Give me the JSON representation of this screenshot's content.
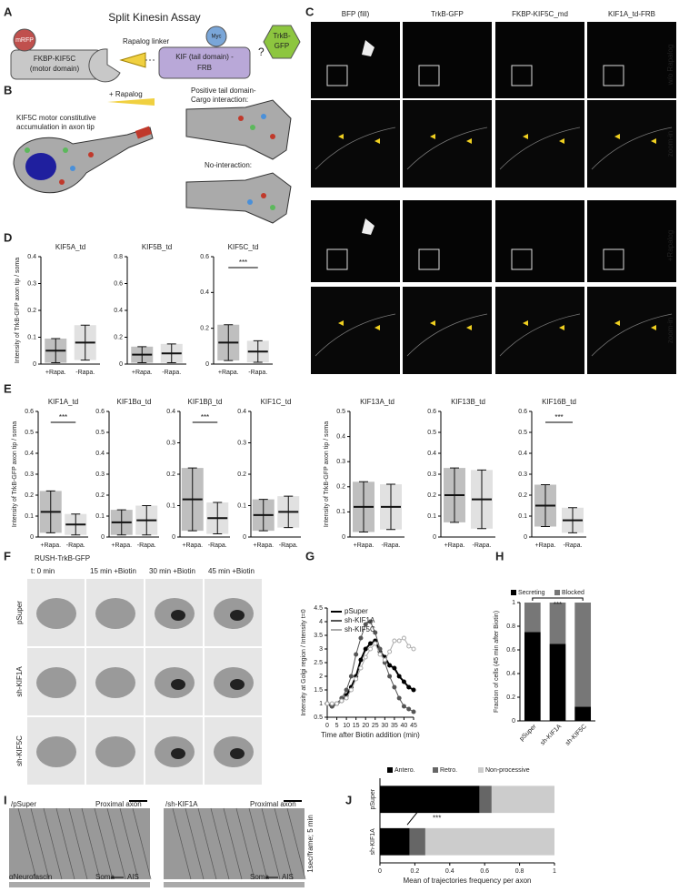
{
  "figure": {
    "letters": [
      "A",
      "B",
      "C",
      "D",
      "E",
      "F",
      "G",
      "H",
      "I",
      "J"
    ],
    "a": {
      "title": "Split Kinesin Assay",
      "mrfp": "mRFP",
      "motor": [
        "FKBP-KIF5C",
        "(motor domain)"
      ],
      "linker": "Rapalog linker",
      "kif": [
        "KIF (tail domain) -",
        "FRB"
      ],
      "myc": "Myc",
      "question": "?",
      "trkb": [
        "TrkB-",
        "GFP"
      ]
    },
    "b": {
      "rapalog": "+ Rapalog",
      "positive": [
        "Positive tail domain-",
        "Cargo interaction:"
      ],
      "motor": [
        "KIF5C motor constitutive",
        "accumulation in axon tip"
      ],
      "none": "No-interaction:"
    },
    "c": {
      "columns": [
        "BFP (fill)",
        "TrkB-GFP",
        "FKBP-KIF5C_md",
        "KIF1A_td-FRB"
      ],
      "rows": [
        "w/o Rapalog",
        "+Rapalog"
      ],
      "zoom": [
        "zoom-in",
        "zoom-in"
      ]
    },
    "f": {
      "title": "RUSH-TrkB-GFP",
      "columns": [
        "t: 0 min",
        "15 min +Biotin",
        "30 min +Biotin",
        "45 min +Biotin"
      ],
      "rows": [
        "pSuper",
        "sh-KIF1A",
        "sh-KIF5C"
      ]
    },
    "i": {
      "panels": [
        "/pSuper",
        "/sh-KIF1A"
      ],
      "region": [
        "Proximal axon",
        "Proximal axon"
      ],
      "time": "1sec/frame; 5 min",
      "stain": "αNeurofascin",
      "soma": [
        "Soma",
        "Soma"
      ],
      "ais": [
        "AIS",
        "AIS"
      ]
    }
  },
  "chart_data": [
    {
      "type": "dot",
      "title": "KIF5A_td",
      "ylabel": "Intensity of TrkB-GFP axon tip / soma",
      "categories": [
        "+Rapa.",
        "-Rapa."
      ],
      "values": [
        0.05,
        0.08
      ],
      "errors": [
        0.045,
        0.065
      ],
      "colors": [
        "#000000",
        "#888888"
      ],
      "ylim": [
        0,
        0.4
      ],
      "yticks": [
        0,
        0.1,
        0.2,
        0.3,
        0.4
      ]
    },
    {
      "type": "dot",
      "title": "KIF5B_td",
      "categories": [
        "+Rapa.",
        "-Rapa."
      ],
      "values": [
        0.07,
        0.08
      ],
      "errors": [
        0.06,
        0.07
      ],
      "colors": [
        "#000000",
        "#888888"
      ],
      "ylim": [
        0,
        0.8
      ],
      "yticks": [
        0,
        0.2,
        0.4,
        0.6,
        0.8
      ]
    },
    {
      "type": "dot",
      "title": "KIF5C_td",
      "annotation": "***",
      "categories": [
        "+Rapa.",
        "-Rapa."
      ],
      "values": [
        0.12,
        0.07
      ],
      "errors": [
        0.1,
        0.06
      ],
      "colors": [
        "#000000",
        "#888888"
      ],
      "ylim": [
        0,
        0.6
      ],
      "yticks": [
        0,
        0.2,
        0.4,
        0.6
      ]
    },
    {
      "type": "dot",
      "title": "KIF1A_td",
      "annotation": "***",
      "ylabel": "Intensity of TrkB-GFP axon tip / soma",
      "categories": [
        "+Rapa.",
        "-Rapa."
      ],
      "values": [
        0.12,
        0.06
      ],
      "errors": [
        0.1,
        0.05
      ],
      "colors": [
        "#000000",
        "#888888"
      ],
      "ylim": [
        0,
        0.6
      ],
      "yticks": [
        0,
        0.1,
        0.2,
        0.3,
        0.4,
        0.5,
        0.6
      ]
    },
    {
      "type": "dot",
      "title": "KIF1Bα_td",
      "categories": [
        "+Rapa.",
        "-Rapa."
      ],
      "values": [
        0.07,
        0.08
      ],
      "errors": [
        0.06,
        0.07
      ],
      "colors": [
        "#000000",
        "#888888"
      ],
      "ylim": [
        0,
        0.6
      ],
      "yticks": [
        0,
        0.1,
        0.2,
        0.3,
        0.4,
        0.5,
        0.6
      ]
    },
    {
      "type": "dot",
      "title": "KIF1Bβ_td",
      "annotation": "***",
      "categories": [
        "+Rapa.",
        "-Rapa."
      ],
      "values": [
        0.12,
        0.06
      ],
      "errors": [
        0.1,
        0.05
      ],
      "colors": [
        "#000000",
        "#888888"
      ],
      "ylim": [
        0,
        0.4
      ],
      "yticks": [
        0,
        0.1,
        0.2,
        0.3,
        0.4
      ]
    },
    {
      "type": "dot",
      "title": "KIF1C_td",
      "categories": [
        "+Rapa.",
        "-Rapa."
      ],
      "values": [
        0.07,
        0.08
      ],
      "errors": [
        0.05,
        0.05
      ],
      "colors": [
        "#000000",
        "#888888"
      ],
      "ylim": [
        0,
        0.4
      ],
      "yticks": [
        0,
        0.1,
        0.2,
        0.3,
        0.4
      ]
    },
    {
      "type": "dot",
      "title": "KIF13A_td",
      "ylabel": "Intensity of TrkB-GFP axon tip / soma",
      "categories": [
        "+Rapa.",
        "-Rapa."
      ],
      "values": [
        0.12,
        0.12
      ],
      "errors": [
        0.1,
        0.09
      ],
      "colors": [
        "#000000",
        "#888888"
      ],
      "ylim": [
        0,
        0.5
      ],
      "yticks": [
        0,
        0.1,
        0.2,
        0.3,
        0.4,
        0.5
      ]
    },
    {
      "type": "dot",
      "title": "KIF13B_td",
      "categories": [
        "+Rapa.",
        "-Rapa."
      ],
      "values": [
        0.2,
        0.18
      ],
      "errors": [
        0.13,
        0.14
      ],
      "colors": [
        "#000000",
        "#888888"
      ],
      "ylim": [
        0,
        0.6
      ],
      "yticks": [
        0,
        0.1,
        0.2,
        0.3,
        0.4,
        0.5,
        0.6
      ]
    },
    {
      "type": "dot",
      "title": "KIF16B_td",
      "annotation": "***",
      "categories": [
        "+Rapa.",
        "-Rapa."
      ],
      "values": [
        0.15,
        0.08
      ],
      "errors": [
        0.1,
        0.06
      ],
      "colors": [
        "#000000",
        "#888888"
      ],
      "ylim": [
        0,
        0.6
      ],
      "yticks": [
        0,
        0.1,
        0.2,
        0.3,
        0.4,
        0.5,
        0.6
      ]
    },
    {
      "type": "line",
      "xlabel": "Time after Biotin addition (min)",
      "ylabel": "Intensity at Golgi region / Intensity t=0",
      "x": [
        0,
        2.5,
        5,
        7.5,
        10,
        12.5,
        15,
        17.5,
        20,
        22.5,
        25,
        27.5,
        30,
        32.5,
        35,
        37.5,
        40,
        42.5,
        45
      ],
      "series": [
        {
          "name": "pSuper",
          "color": "#000000",
          "values": [
            1.0,
            0.9,
            1.0,
            1.1,
            1.3,
            1.6,
            2.0,
            2.6,
            3.0,
            3.2,
            3.3,
            2.9,
            2.7,
            2.4,
            2.3,
            2.0,
            1.8,
            1.6,
            1.5
          ]
        },
        {
          "name": "sh-KIF1A",
          "color": "#555555",
          "values": [
            1.0,
            0.9,
            1.0,
            1.2,
            1.5,
            2.0,
            2.8,
            3.4,
            3.9,
            4.0,
            3.6,
            3.0,
            2.5,
            2.0,
            1.6,
            1.2,
            0.9,
            0.8,
            0.7
          ]
        },
        {
          "name": "sh-KIF5C",
          "color": "#aaaaaa",
          "values": [
            1.0,
            1.0,
            1.0,
            1.1,
            1.2,
            1.5,
            1.9,
            2.3,
            2.7,
            3.0,
            3.2,
            2.8,
            2.6,
            2.9,
            3.3,
            3.3,
            3.4,
            3.1,
            3.0
          ]
        }
      ],
      "xlim": [
        0,
        45
      ],
      "xticks": [
        0,
        5,
        10,
        15,
        20,
        25,
        30,
        35,
        40,
        45
      ],
      "ylim": [
        0.5,
        4.5
      ],
      "yticks": [
        0.5,
        1,
        1.5,
        2,
        2.5,
        3,
        3.5,
        4,
        4.5
      ]
    },
    {
      "type": "stacked_bar",
      "ylabel": "Fraction of cells (45 min after Biotin)",
      "annotation": "***",
      "categories": [
        "pSuper",
        "sh-KIF1A",
        "sh-KIF5C"
      ],
      "series": [
        {
          "name": "Secreting",
          "color": "#000000",
          "values": [
            0.75,
            0.65,
            0.12
          ]
        },
        {
          "name": "Blocked",
          "color": "#777777",
          "values": [
            0.25,
            0.35,
            0.88
          ]
        }
      ],
      "ylim": [
        0,
        1
      ],
      "yticks": [
        0,
        0.2,
        0.4,
        0.6,
        0.8,
        1
      ]
    },
    {
      "type": "stacked_barh",
      "xlabel": "Mean of trajectories frequency per axon",
      "annotation": "***",
      "categories": [
        "pSuper",
        "sh-KIF1A"
      ],
      "series": [
        {
          "name": "Antero.",
          "color": "#000000",
          "values": [
            0.57,
            0.17
          ]
        },
        {
          "name": "Retro.",
          "color": "#666666",
          "values": [
            0.07,
            0.09
          ]
        },
        {
          "name": "Non-processive",
          "color": "#cccccc",
          "values": [
            0.36,
            0.74
          ]
        }
      ],
      "xlim": [
        0,
        1
      ],
      "xticks": [
        0,
        0.2,
        0.4,
        0.6,
        0.8,
        1
      ]
    }
  ]
}
